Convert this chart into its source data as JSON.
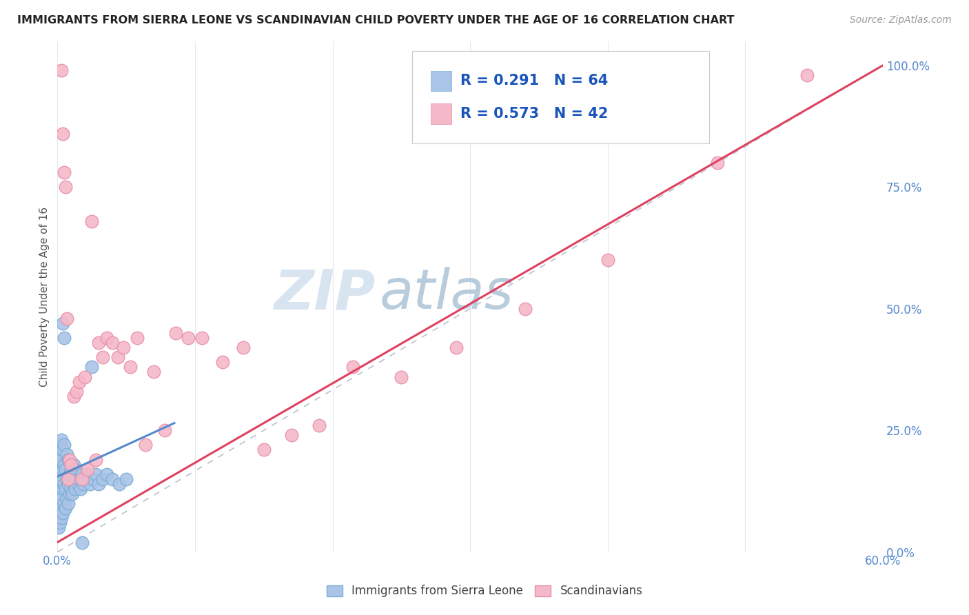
{
  "title": "IMMIGRANTS FROM SIERRA LEONE VS SCANDINAVIAN CHILD POVERTY UNDER THE AGE OF 16 CORRELATION CHART",
  "source": "Source: ZipAtlas.com",
  "ylabel": "Child Poverty Under the Age of 16",
  "xlim": [
    0.0,
    0.6
  ],
  "ylim": [
    0.0,
    1.05
  ],
  "blue_color": "#aac4e8",
  "blue_edge": "#7aafd4",
  "pink_color": "#f5b8c8",
  "pink_edge": "#e890a8",
  "blue_line_color": "#5588cc",
  "pink_line_color": "#e04060",
  "dashed_line_color": "#b8bfcc",
  "watermark_zip_color": "#d8e4f0",
  "watermark_atlas_color": "#b8ccdc",
  "legend_label1": "Immigrants from Sierra Leone",
  "legend_label2": "Scandinavians",
  "background_color": "#ffffff",
  "grid_color": "#e4e8f0",
  "tick_color": "#5588cc",
  "blue_x": [
    0.001,
    0.001,
    0.001,
    0.001,
    0.001,
    0.002,
    0.002,
    0.002,
    0.002,
    0.002,
    0.002,
    0.003,
    0.003,
    0.003,
    0.003,
    0.003,
    0.004,
    0.004,
    0.004,
    0.004,
    0.005,
    0.005,
    0.005,
    0.005,
    0.006,
    0.006,
    0.006,
    0.007,
    0.007,
    0.007,
    0.008,
    0.008,
    0.008,
    0.009,
    0.009,
    0.01,
    0.01,
    0.011,
    0.011,
    0.012,
    0.012,
    0.013,
    0.013,
    0.014,
    0.015,
    0.016,
    0.017,
    0.018,
    0.019,
    0.02,
    0.022,
    0.024,
    0.026,
    0.028,
    0.03,
    0.033,
    0.036,
    0.04,
    0.045,
    0.05,
    0.004,
    0.005,
    0.018,
    0.025
  ],
  "blue_y": [
    0.05,
    0.08,
    0.1,
    0.14,
    0.18,
    0.06,
    0.09,
    0.12,
    0.16,
    0.2,
    0.22,
    0.07,
    0.11,
    0.15,
    0.19,
    0.23,
    0.08,
    0.13,
    0.17,
    0.21,
    0.1,
    0.14,
    0.18,
    0.22,
    0.09,
    0.13,
    0.17,
    0.11,
    0.15,
    0.2,
    0.1,
    0.14,
    0.19,
    0.12,
    0.16,
    0.13,
    0.17,
    0.12,
    0.16,
    0.14,
    0.18,
    0.13,
    0.17,
    0.15,
    0.14,
    0.15,
    0.13,
    0.16,
    0.14,
    0.15,
    0.16,
    0.14,
    0.15,
    0.16,
    0.14,
    0.15,
    0.16,
    0.15,
    0.14,
    0.15,
    0.47,
    0.44,
    0.02,
    0.38
  ],
  "pink_x": [
    0.003,
    0.004,
    0.005,
    0.006,
    0.007,
    0.008,
    0.009,
    0.01,
    0.012,
    0.014,
    0.016,
    0.018,
    0.02,
    0.022,
    0.025,
    0.028,
    0.03,
    0.033,
    0.036,
    0.04,
    0.044,
    0.048,
    0.053,
    0.058,
    0.064,
    0.07,
    0.078,
    0.086,
    0.095,
    0.105,
    0.12,
    0.135,
    0.15,
    0.17,
    0.19,
    0.215,
    0.25,
    0.29,
    0.34,
    0.4,
    0.48,
    0.545
  ],
  "pink_y": [
    0.99,
    0.86,
    0.78,
    0.75,
    0.48,
    0.15,
    0.19,
    0.18,
    0.32,
    0.33,
    0.35,
    0.15,
    0.36,
    0.17,
    0.68,
    0.19,
    0.43,
    0.4,
    0.44,
    0.43,
    0.4,
    0.42,
    0.38,
    0.44,
    0.22,
    0.37,
    0.25,
    0.45,
    0.44,
    0.44,
    0.39,
    0.42,
    0.21,
    0.24,
    0.26,
    0.38,
    0.36,
    0.42,
    0.5,
    0.6,
    0.8,
    0.98
  ],
  "blue_line_x": [
    0.0,
    0.085
  ],
  "blue_line_y": [
    0.155,
    0.265
  ],
  "pink_line_x": [
    0.0,
    0.6
  ],
  "pink_line_y": [
    0.02,
    1.0
  ]
}
